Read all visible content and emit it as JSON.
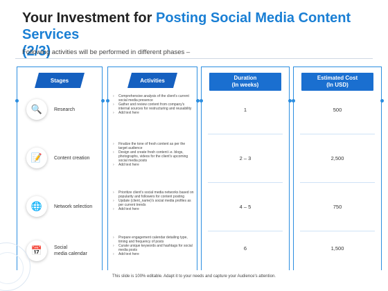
{
  "title_plain": "Your Investment for ",
  "title_accent": "Posting Social Media Content Services",
  "title_suffix": "(2/3)",
  "subtitle": "Following activities will be performed in different phases –",
  "headers": {
    "stages": "Stages",
    "activities": "Activities",
    "duration_line1": "Duration",
    "duration_line2": "(In weeks)",
    "cost_line1": "Estimated Cost",
    "cost_line2": "(In USD)"
  },
  "rows": [
    {
      "stage": "Research",
      "icon": "magnifier-document-icon",
      "activities": [
        "Comprehensive analysis of the client's current social media presence",
        "Gather and review content from company's internal sources for restructuring and reusability",
        "Add text here"
      ],
      "duration": "1",
      "cost": "500"
    },
    {
      "stage": "Content creation",
      "icon": "document-pen-icon",
      "activities": [
        "Finalize the tone of fresh content as per the target audience",
        "Design and create fresh content i.e. blogs, photographs, videos for the client's upcoming social media posts",
        "Add text here"
      ],
      "duration": "2 – 3",
      "cost": "2,500"
    },
    {
      "stage": "Network selection",
      "icon": "network-globe-icon",
      "activities": [
        "Prioritize client's social media networks based on popularity and followers for content posting",
        "Update (client_name)'s social media profiles as per current trends",
        "Add text here"
      ],
      "duration": "4 – 5",
      "cost": "750"
    },
    {
      "stage_line1": "Social",
      "stage_line2": "media calendar",
      "icon": "calendar-icon",
      "activities": [
        "Prepare engagement calendar detailing type, timing and frequency of posts",
        "Curate unique keywords and hashtags for social media posts",
        "Add text here"
      ],
      "duration": "6",
      "cost": "1,500"
    }
  ],
  "footer": "This slide is 100% editable. Adapt it to your needs and capture your Audience's attention.",
  "colors": {
    "accent": "#1a7fd4",
    "header_bg": "#1560c0",
    "line": "#2a8de0"
  }
}
